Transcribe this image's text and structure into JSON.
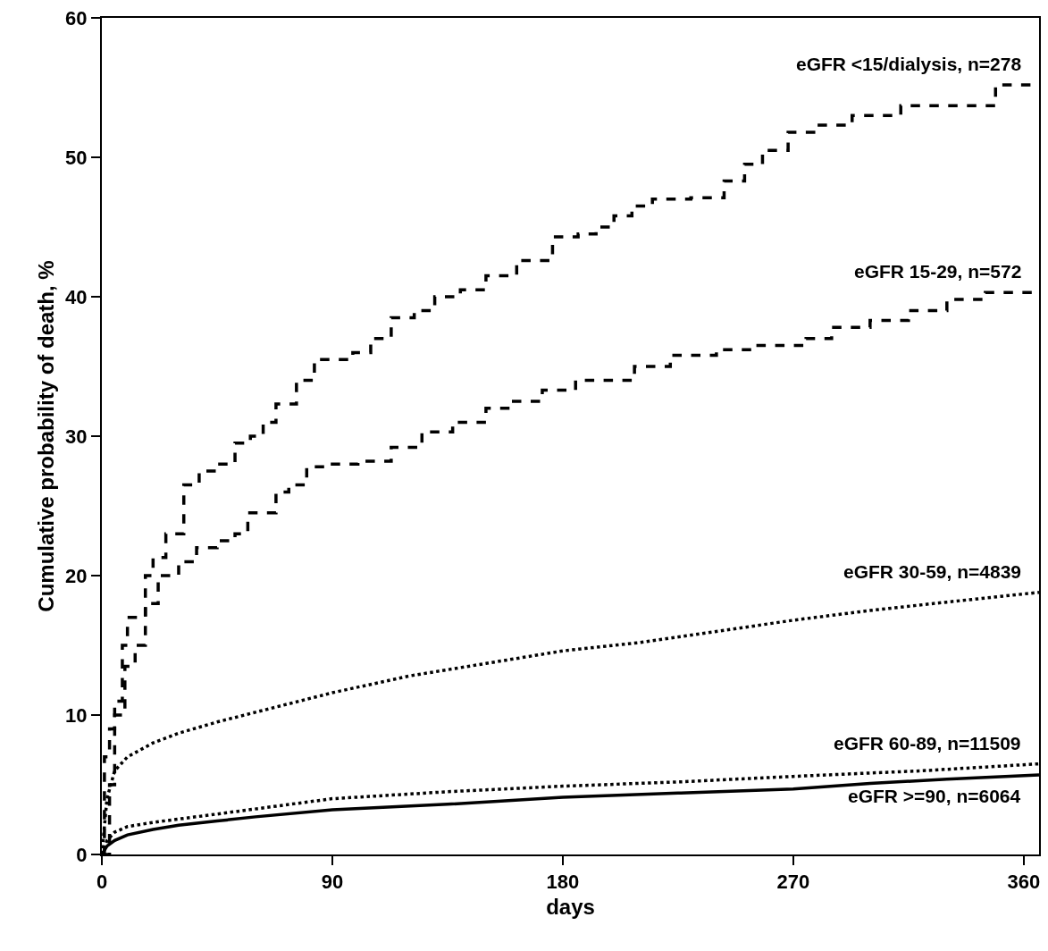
{
  "chart_data": {
    "type": "step",
    "xlabel": "days",
    "ylabel": "Cumulative probability of death, %",
    "xlim": [
      0,
      366
    ],
    "xticks": [
      0,
      90,
      180,
      270,
      360
    ],
    "ylim": [
      0,
      60
    ],
    "yticks": [
      0,
      10,
      20,
      30,
      40,
      50,
      60
    ],
    "legend": false,
    "series": [
      {
        "name": "eGFR <15/dialysis, n=278",
        "color": "#000000",
        "line_style": "dashed",
        "x": [
          0,
          1,
          3,
          5,
          8,
          10,
          17,
          20,
          25,
          32,
          38,
          45,
          52,
          58,
          63,
          68,
          76,
          83,
          98,
          105,
          113,
          122,
          130,
          140,
          150,
          162,
          176,
          186,
          193,
          200,
          207,
          215,
          230,
          243,
          251,
          258,
          268,
          278,
          293,
          312,
          349,
          366
        ],
        "values": [
          0,
          7,
          9,
          11,
          15,
          17,
          20,
          21.3,
          23,
          26.5,
          27.5,
          28,
          29.5,
          30,
          31,
          32.3,
          34,
          35.5,
          36,
          37,
          38.5,
          39,
          40,
          40.5,
          41.5,
          42.6,
          44.3,
          44.5,
          45,
          45.8,
          46.5,
          47,
          47.1,
          48.3,
          49.5,
          50.5,
          51.8,
          52.3,
          53,
          53.7,
          55.2,
          55.2
        ]
      },
      {
        "name": "eGFR 15-29, n=572",
        "color": "#000000",
        "line_style": "dashed",
        "x": [
          0,
          3,
          5,
          9,
          13,
          17,
          22,
          30,
          37,
          45,
          52,
          57,
          68,
          73,
          80,
          90,
          100,
          113,
          125,
          137,
          150,
          160,
          172,
          185,
          208,
          222,
          240,
          255,
          275,
          285,
          300,
          315,
          330,
          345,
          366
        ],
        "values": [
          0,
          5,
          10,
          13.5,
          15,
          18,
          20,
          21,
          22,
          22.5,
          23,
          24.5,
          26,
          26.5,
          27.8,
          28,
          28.2,
          29.2,
          30.3,
          31,
          32,
          32.5,
          33.3,
          34,
          35,
          35.8,
          36.2,
          36.5,
          37,
          37.8,
          38.3,
          39,
          39.8,
          40.3,
          40.3
        ]
      },
      {
        "name": "eGFR 30-59, n=4839",
        "color": "#000000",
        "line_style": "dotted",
        "type": "line",
        "x": [
          0,
          2,
          5,
          10,
          20,
          30,
          45,
          60,
          90,
          120,
          150,
          180,
          210,
          240,
          270,
          300,
          330,
          366
        ],
        "values": [
          0,
          4,
          6,
          7,
          8,
          8.7,
          9.5,
          10.2,
          11.6,
          12.8,
          13.7,
          14.6,
          15.2,
          16,
          16.8,
          17.5,
          18.1,
          18.8
        ]
      },
      {
        "name": "eGFR 60-89, n=11509",
        "color": "#000000",
        "line_style": "dotted",
        "type": "line",
        "x": [
          0,
          2,
          5,
          10,
          20,
          45,
          90,
          135,
          180,
          225,
          270,
          320,
          366
        ],
        "values": [
          0,
          1,
          1.6,
          2,
          2.3,
          2.9,
          4,
          4.5,
          4.9,
          5.2,
          5.6,
          6,
          6.5
        ]
      },
      {
        "name": "eGFR >=90, n=6064",
        "color": "#000000",
        "line_style": "solid",
        "type": "line",
        "x": [
          0,
          2,
          5,
          10,
          20,
          30,
          45,
          60,
          90,
          135,
          180,
          225,
          270,
          300,
          330,
          366
        ],
        "values": [
          0,
          0.6,
          1,
          1.4,
          1.8,
          2.1,
          2.4,
          2.7,
          3.2,
          3.6,
          4.1,
          4.4,
          4.7,
          5.1,
          5.4,
          5.7
        ]
      }
    ]
  }
}
